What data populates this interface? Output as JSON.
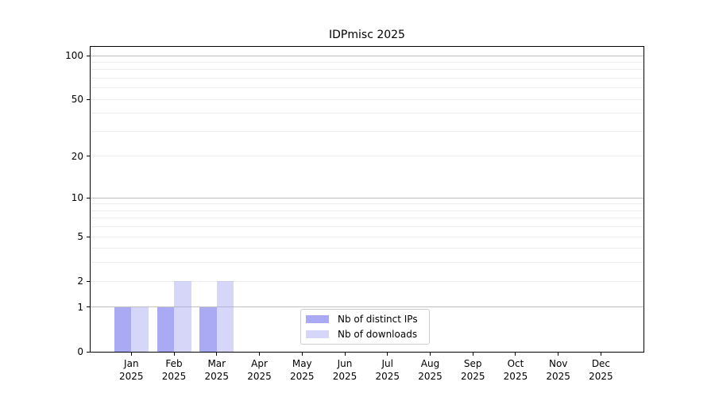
{
  "chart_data": {
    "type": "bar",
    "title": "IDPmisc 2025",
    "x_categories": [
      "Jan",
      "Feb",
      "Mar",
      "Apr",
      "May",
      "Jun",
      "Jul",
      "Aug",
      "Sep",
      "Oct",
      "Nov",
      "Dec"
    ],
    "x_year": "2025",
    "series": [
      {
        "name": "Nb of distinct IPs",
        "values": [
          1,
          1,
          1,
          0,
          0,
          0,
          0,
          0,
          0,
          0,
          0,
          0
        ]
      },
      {
        "name": "Nb of downloads",
        "values": [
          1,
          2,
          2,
          0,
          0,
          0,
          0,
          0,
          0,
          0,
          0,
          0
        ]
      }
    ],
    "y_scale": "log1p",
    "y_tick_labels": [
      100,
      50,
      20,
      10,
      5,
      2,
      1,
      0
    ],
    "y_major_gridlines": [
      1,
      10,
      100
    ],
    "y_minor_gridlines": [
      2,
      3,
      4,
      5,
      6,
      7,
      8,
      9,
      20,
      30,
      40,
      50,
      60,
      70,
      80,
      90
    ],
    "ylim": [
      0,
      113
    ],
    "grid": true,
    "legend_position": "lower center"
  },
  "colors": {
    "bar_distinct_ips": "#a9a9f4",
    "bar_downloads_base": "#a4a4f2",
    "bar_downloads_opacity": 0.45,
    "grid_major": "#c0c0c0",
    "grid_minor": "#ededed",
    "axis": "#000000",
    "legend_border": "#cccccc",
    "text": "#000000",
    "background": "#ffffff"
  }
}
